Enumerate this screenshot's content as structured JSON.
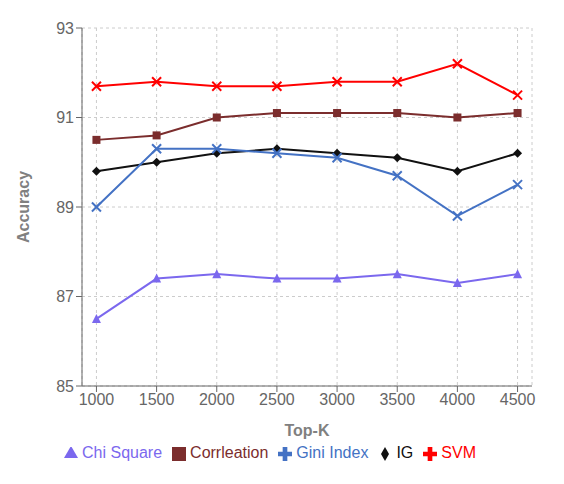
{
  "chart_data": {
    "type": "line",
    "x": [
      1000,
      1500,
      2000,
      2500,
      3000,
      3500,
      4000,
      4500
    ],
    "series": [
      {
        "name": "IG",
        "color": "#111111",
        "marker": "diamond",
        "values": [
          89.8,
          90.0,
          90.2,
          90.3,
          90.2,
          90.1,
          89.8,
          90.2
        ]
      },
      {
        "name": "Corrleation",
        "color": "#7B2D2D",
        "marker": "square",
        "values": [
          90.5,
          90.6,
          91.0,
          91.1,
          91.1,
          91.1,
          91.0,
          91.1
        ]
      },
      {
        "name": "Chi Square",
        "color": "#7B68EE",
        "marker": "triangle",
        "values": [
          86.5,
          87.4,
          87.5,
          87.4,
          87.4,
          87.5,
          87.3,
          87.5
        ]
      },
      {
        "name": "SVM",
        "color": "#FF0000",
        "marker": "x",
        "values": [
          91.7,
          91.8,
          91.7,
          91.7,
          91.8,
          91.8,
          92.2,
          91.5
        ]
      },
      {
        "name": "Gini Index",
        "color": "#4472C4",
        "marker": "x",
        "values": [
          89.0,
          90.3,
          90.3,
          90.2,
          90.1,
          89.7,
          88.8,
          89.5
        ]
      }
    ],
    "xlim": [
      880,
      4620
    ],
    "xticks": [
      1000,
      1500,
      2000,
      2500,
      3000,
      3500,
      4000,
      4500
    ],
    "ylim": [
      85,
      93
    ],
    "yticks": [
      85,
      87,
      89,
      91,
      93
    ],
    "xlabel": "Top-K",
    "ylabel": "Accuracy",
    "grid": true,
    "legend": "bottom"
  }
}
